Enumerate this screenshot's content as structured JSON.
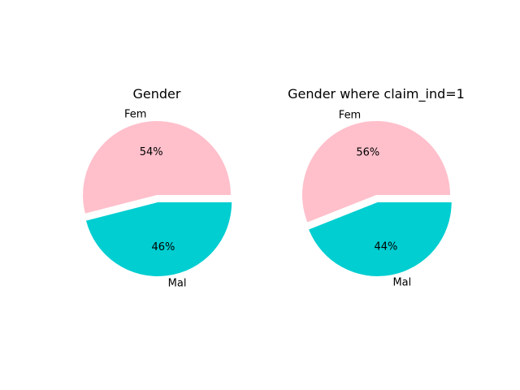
{
  "chart_data": [
    {
      "type": "pie",
      "title": "Gender",
      "categories": [
        "Fem",
        "Mal"
      ],
      "values": [
        54,
        46
      ],
      "value_labels": [
        "54%",
        "46%"
      ],
      "colors": [
        "#ffc0cb",
        "#00ced1"
      ],
      "explode": [
        0,
        0.1
      ]
    },
    {
      "type": "pie",
      "title": "Gender where claim_ind=1",
      "categories": [
        "Fem",
        "Mal"
      ],
      "values": [
        56,
        44
      ],
      "value_labels": [
        "56%",
        "44%"
      ],
      "colors": [
        "#ffc0cb",
        "#00ced1"
      ],
      "explode": [
        0,
        0.1
      ]
    }
  ]
}
